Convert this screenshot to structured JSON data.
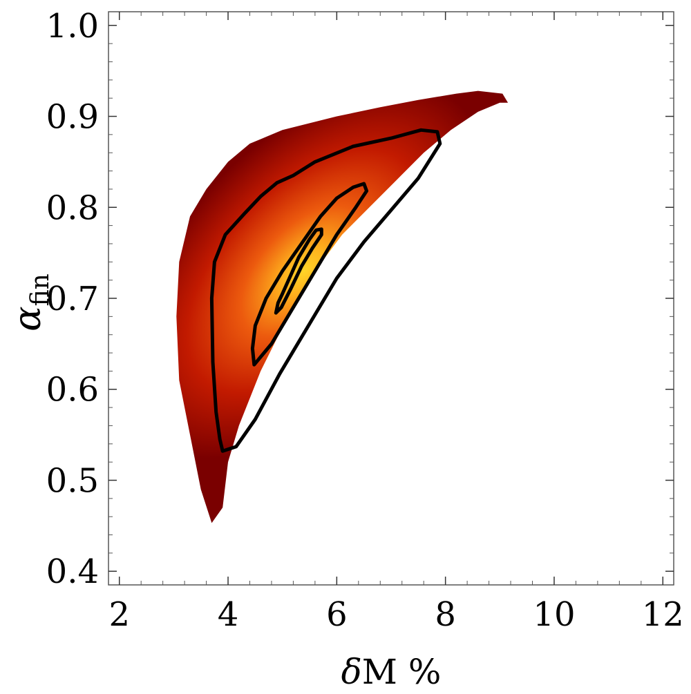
{
  "chart_data": {
    "type": "heatmap",
    "subtype": "density-contour",
    "title": "",
    "xlabel": {
      "prefix": "δ",
      "main": "M %"
    },
    "ylabel": {
      "main": "α",
      "subscript": "fin"
    },
    "xlim": [
      1.8,
      12.2
    ],
    "ylim": [
      0.385,
      1.015
    ],
    "xticks": [
      2,
      4,
      6,
      8,
      10,
      12
    ],
    "yticks": [
      0.4,
      0.5,
      0.6,
      0.7,
      0.8,
      0.9,
      1.0
    ],
    "xtick_labels": [
      "2",
      "4",
      "6",
      "8",
      "10",
      "12"
    ],
    "ytick_labels": [
      "0.4",
      "0.5",
      "0.6",
      "0.7",
      "0.8",
      "0.9",
      "1.0"
    ],
    "grid": false,
    "legend": "none",
    "colormap": [
      "#7a0000",
      "#c21a00",
      "#ec5a0e",
      "#ffb21e",
      "#ffd428"
    ],
    "density_peak": {
      "x": 5.4,
      "y": 0.73
    },
    "regions": [
      {
        "name": "outer-support",
        "points": [
          [
            3.7,
            0.453
          ],
          [
            3.9,
            0.47
          ],
          [
            4.0,
            0.52
          ],
          [
            4.2,
            0.56
          ],
          [
            4.6,
            0.62
          ],
          [
            5.1,
            0.68
          ],
          [
            5.6,
            0.73
          ],
          [
            6.1,
            0.77
          ],
          [
            6.6,
            0.8
          ],
          [
            7.1,
            0.83
          ],
          [
            7.6,
            0.86
          ],
          [
            8.1,
            0.885
          ],
          [
            8.6,
            0.905
          ],
          [
            9.0,
            0.915
          ],
          [
            9.15,
            0.915
          ],
          [
            9.05,
            0.925
          ],
          [
            8.6,
            0.928
          ],
          [
            8.2,
            0.925
          ],
          [
            7.5,
            0.918
          ],
          [
            6.8,
            0.91
          ],
          [
            6.0,
            0.9
          ],
          [
            5.0,
            0.885
          ],
          [
            4.4,
            0.87
          ],
          [
            4.0,
            0.85
          ],
          [
            3.6,
            0.82
          ],
          [
            3.3,
            0.79
          ],
          [
            3.1,
            0.74
          ],
          [
            3.05,
            0.68
          ],
          [
            3.1,
            0.61
          ],
          [
            3.3,
            0.55
          ],
          [
            3.5,
            0.49
          ]
        ]
      }
    ],
    "contours": [
      {
        "level": "outer",
        "points": [
          [
            3.9,
            0.532
          ],
          [
            4.15,
            0.537
          ],
          [
            4.5,
            0.567
          ],
          [
            4.95,
            0.617
          ],
          [
            5.5,
            0.672
          ],
          [
            6.0,
            0.722
          ],
          [
            6.5,
            0.762
          ],
          [
            7.0,
            0.797
          ],
          [
            7.5,
            0.832
          ],
          [
            7.9,
            0.87
          ],
          [
            7.85,
            0.883
          ],
          [
            7.55,
            0.885
          ],
          [
            7.0,
            0.876
          ],
          [
            6.3,
            0.867
          ],
          [
            5.6,
            0.85
          ],
          [
            5.2,
            0.835
          ],
          [
            4.9,
            0.827
          ],
          [
            4.6,
            0.812
          ],
          [
            4.3,
            0.793
          ],
          [
            3.95,
            0.77
          ],
          [
            3.75,
            0.74
          ],
          [
            3.7,
            0.7
          ],
          [
            3.72,
            0.63
          ],
          [
            3.78,
            0.575
          ],
          [
            3.85,
            0.545
          ]
        ]
      },
      {
        "level": "middle",
        "points": [
          [
            4.48,
            0.627
          ],
          [
            4.8,
            0.65
          ],
          [
            5.2,
            0.69
          ],
          [
            5.6,
            0.73
          ],
          [
            6.0,
            0.77
          ],
          [
            6.35,
            0.8
          ],
          [
            6.55,
            0.818
          ],
          [
            6.5,
            0.826
          ],
          [
            6.3,
            0.822
          ],
          [
            6.0,
            0.81
          ],
          [
            5.7,
            0.79
          ],
          [
            5.35,
            0.76
          ],
          [
            5.0,
            0.73
          ],
          [
            4.7,
            0.7
          ],
          [
            4.5,
            0.67
          ],
          [
            4.45,
            0.645
          ]
        ]
      },
      {
        "level": "inner",
        "points": [
          [
            4.88,
            0.684
          ],
          [
            4.98,
            0.69
          ],
          [
            5.15,
            0.71
          ],
          [
            5.35,
            0.735
          ],
          [
            5.55,
            0.755
          ],
          [
            5.72,
            0.77
          ],
          [
            5.72,
            0.776
          ],
          [
            5.62,
            0.775
          ],
          [
            5.5,
            0.765
          ],
          [
            5.3,
            0.745
          ],
          [
            5.15,
            0.725
          ],
          [
            5.0,
            0.705
          ],
          [
            4.92,
            0.695
          ]
        ]
      }
    ]
  }
}
